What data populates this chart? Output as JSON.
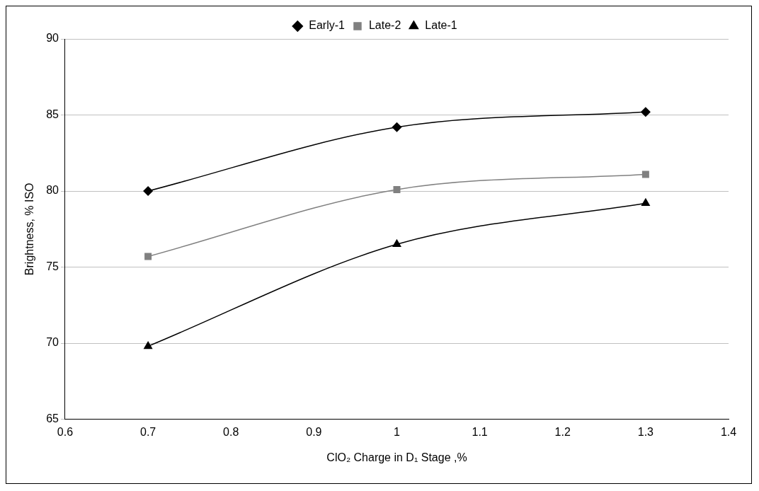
{
  "chart_data": {
    "type": "line",
    "xlabel": "ClO₂ Charge in D₁ Stage ,%",
    "ylabel": "Brightness, % ISO",
    "x": [
      0.7,
      1.0,
      1.3
    ],
    "series": [
      {
        "name": "Early-1",
        "color": "#000000",
        "marker": "diamond",
        "values": [
          80.0,
          84.2,
          85.2
        ]
      },
      {
        "name": "Late-2",
        "color": "#808080",
        "marker": "square",
        "values": [
          75.7,
          80.1,
          81.1
        ]
      },
      {
        "name": "Late-1",
        "color": "#000000",
        "marker": "triangle",
        "values": [
          69.8,
          76.5,
          79.2
        ]
      }
    ],
    "xlim": [
      0.6,
      1.4
    ],
    "xticks": [
      0.6,
      0.7,
      0.8,
      0.9,
      1,
      1.1,
      1.2,
      1.3,
      1.4
    ],
    "ylim": [
      65,
      90
    ],
    "yticks": [
      65,
      70,
      75,
      80,
      85,
      90
    ],
    "grid": "y",
    "legend": "top",
    "line_style": "solid"
  }
}
